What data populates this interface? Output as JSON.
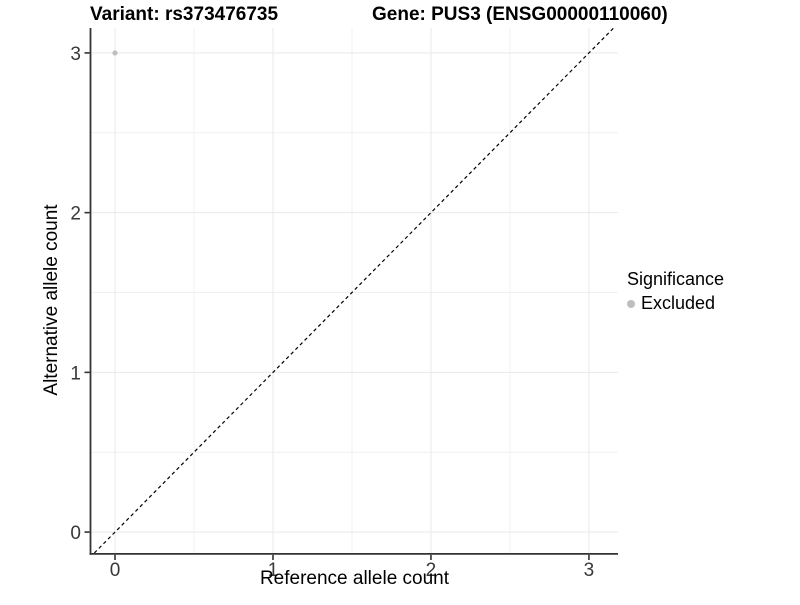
{
  "chart_data": {
    "type": "scatter",
    "titles": {
      "left": "Variant: rs373476735",
      "right": "Gene: PUS3 (ENSG00000110060)"
    },
    "xlabel": "Reference allele count",
    "ylabel": "Alternative allele count",
    "x_ticks": [
      0,
      1,
      2,
      3
    ],
    "y_ticks": [
      0,
      1,
      2,
      3
    ],
    "x_minor_ticks": [
      0.5,
      1.5,
      2.5
    ],
    "y_minor_ticks": [
      0.5,
      1.5,
      2.5
    ],
    "xlim": [
      -0.152,
      3.184
    ],
    "ylim": [
      -0.131,
      3.156
    ],
    "grid": {
      "major": true,
      "minor": true
    },
    "series": [
      {
        "name": "Excluded",
        "color": "#bebebe",
        "points": [
          {
            "x": 0,
            "y": 3
          }
        ]
      }
    ],
    "reference_line": {
      "kind": "identity",
      "style": "dashed",
      "color": "#000000",
      "dash": "3.5 3"
    },
    "legend": {
      "title": "Significance",
      "position": "right",
      "entries": [
        {
          "label": "Excluded",
          "color": "#bebebe"
        }
      ]
    },
    "colors": {
      "axis": "#333333",
      "tick_label": "#383838",
      "grid_major": "#e9e9e9",
      "grid_minor": "#f1f1f1",
      "background": "#ffffff"
    }
  }
}
